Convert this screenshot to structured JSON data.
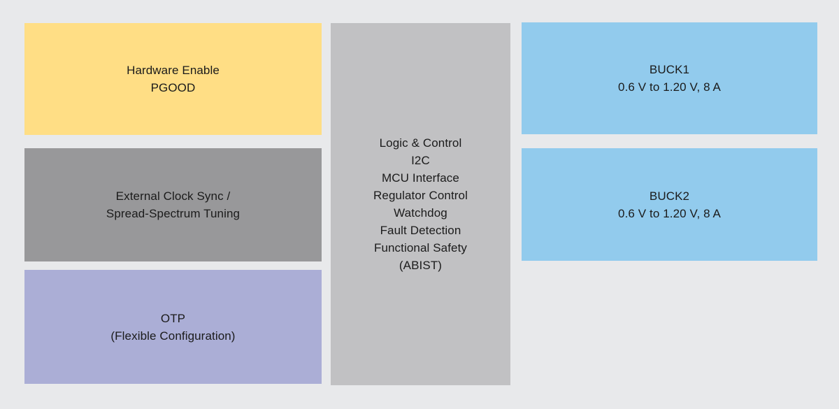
{
  "diagram": {
    "background_color": "#e8e9eb",
    "text_color": "#1b1b1b",
    "blocks": [
      {
        "id": "hardware-enable",
        "color": "#ffde85",
        "lines": [
          "Hardware Enable",
          "PGOOD"
        ]
      },
      {
        "id": "external-clock-sync",
        "color": "#98989a",
        "lines": [
          "External Clock Sync /",
          "Spread-Spectrum Tuning"
        ]
      },
      {
        "id": "otp",
        "color": "#abaed6",
        "lines": [
          "OTP",
          "(Flexible Configuration)"
        ]
      },
      {
        "id": "logic-control",
        "color": "#c1c1c3",
        "lines": [
          "Logic & Control",
          "I2C",
          "MCU Interface",
          "Regulator Control",
          "Watchdog",
          "Fault Detection",
          "Functional Safety",
          "(ABIST)"
        ]
      },
      {
        "id": "buck1",
        "color": "#92cbed",
        "lines": [
          "BUCK1",
          "0.6 V to 1.20 V, 8 A"
        ]
      },
      {
        "id": "buck2",
        "color": "#92cbed",
        "lines": [
          "BUCK2",
          "0.6 V to 1.20 V, 8 A"
        ]
      }
    ]
  }
}
